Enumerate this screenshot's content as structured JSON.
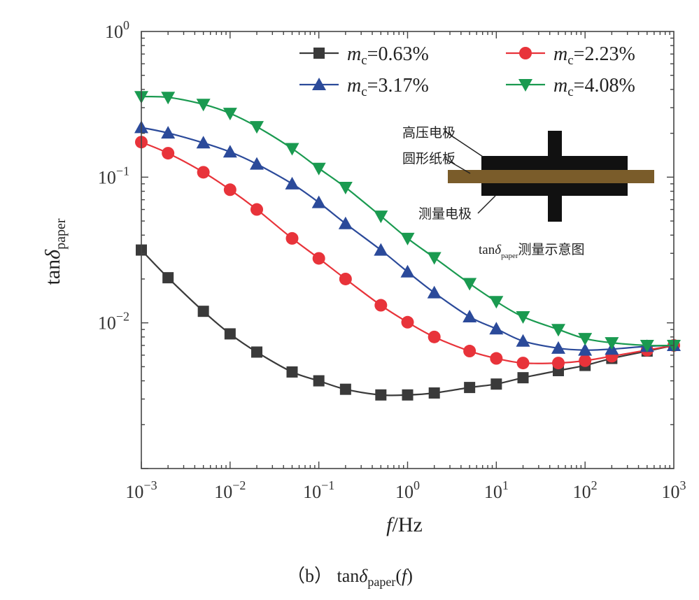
{
  "chart_data": {
    "type": "line",
    "title": "",
    "caption": {
      "prefix": "（b） tan",
      "delta": "δ",
      "sub": "paper",
      "open": "(",
      "var": "f",
      "close": ")"
    },
    "xlabel": {
      "var": "f",
      "unit": "/Hz"
    },
    "ylabel": {
      "main": "tan",
      "delta": "δ",
      "sub": "paper"
    },
    "xscale": "log",
    "yscale": "log",
    "xlim": [
      0.001,
      1000
    ],
    "ylim": [
      0.001,
      1
    ],
    "grid": false,
    "legend_position": "top-right",
    "x_ticks": [
      {
        "base": "10",
        "exp": "−3",
        "v": 0.001
      },
      {
        "base": "10",
        "exp": "−2",
        "v": 0.01
      },
      {
        "base": "10",
        "exp": "−1",
        "v": 0.1
      },
      {
        "base": "10",
        "exp": "0",
        "v": 1
      },
      {
        "base": "10",
        "exp": "1",
        "v": 10
      },
      {
        "base": "10",
        "exp": "2",
        "v": 100
      },
      {
        "base": "10",
        "exp": "3",
        "v": 1000
      }
    ],
    "y_ticks": [
      {
        "base": "10",
        "exp": "0",
        "v": 1
      },
      {
        "base": "10",
        "exp": "−1",
        "v": 0.1
      },
      {
        "base": "10",
        "exp": "−2",
        "v": 0.01
      }
    ],
    "x": [
      0.001,
      0.002,
      0.005,
      0.01,
      0.02,
      0.05,
      0.1,
      0.2,
      0.5,
      1,
      2,
      5,
      10,
      20,
      50,
      100,
      200,
      500,
      1000
    ],
    "series": [
      {
        "name": "mc=0.63%",
        "label_var": "m",
        "label_sub": "c",
        "label_val": "=0.63%",
        "color": "#3a3a3a",
        "marker": "square",
        "values": [
          0.0316,
          0.0204,
          0.012,
          0.0084,
          0.0063,
          0.0046,
          0.004,
          0.0035,
          0.0032,
          0.0032,
          0.0033,
          0.0036,
          0.0038,
          0.0042,
          0.0047,
          0.0051,
          0.0057,
          0.0064,
          0.007
        ]
      },
      {
        "name": "mc=2.23%",
        "label_var": "m",
        "label_sub": "c",
        "label_val": "=2.23%",
        "color": "#e8333a",
        "marker": "circle",
        "values": [
          0.174,
          0.146,
          0.108,
          0.082,
          0.06,
          0.038,
          0.0277,
          0.02,
          0.0132,
          0.0101,
          0.008,
          0.0064,
          0.0057,
          0.0053,
          0.0053,
          0.0055,
          0.0059,
          0.0065,
          0.007
        ]
      },
      {
        "name": "mc=3.17%",
        "label_var": "m",
        "label_sub": "c",
        "label_val": "=3.17%",
        "color": "#2b4a9a",
        "marker": "triangle-up",
        "values": [
          0.219,
          0.201,
          0.172,
          0.149,
          0.123,
          0.09,
          0.067,
          0.048,
          0.0316,
          0.0224,
          0.0161,
          0.011,
          0.0091,
          0.0075,
          0.0067,
          0.0065,
          0.0066,
          0.0069,
          0.007
        ]
      },
      {
        "name": "mc=4.08%",
        "label_var": "m",
        "label_sub": "c",
        "label_val": "=4.08%",
        "color": "#1a9a50",
        "marker": "triangle-down",
        "values": [
          0.357,
          0.353,
          0.316,
          0.274,
          0.222,
          0.157,
          0.115,
          0.085,
          0.054,
          0.038,
          0.028,
          0.0186,
          0.014,
          0.011,
          0.009,
          0.0078,
          0.0073,
          0.007,
          0.007
        ]
      }
    ]
  },
  "inset": {
    "label_hv": "高压电极",
    "label_paper": "圆形纸板",
    "label_measure": "测量电极",
    "caption_main": "tan",
    "caption_delta": "δ",
    "caption_sub": "paper",
    "caption_rest": "测量示意图",
    "electrode_color": "#111111",
    "paper_color": "#7a5c2a"
  }
}
